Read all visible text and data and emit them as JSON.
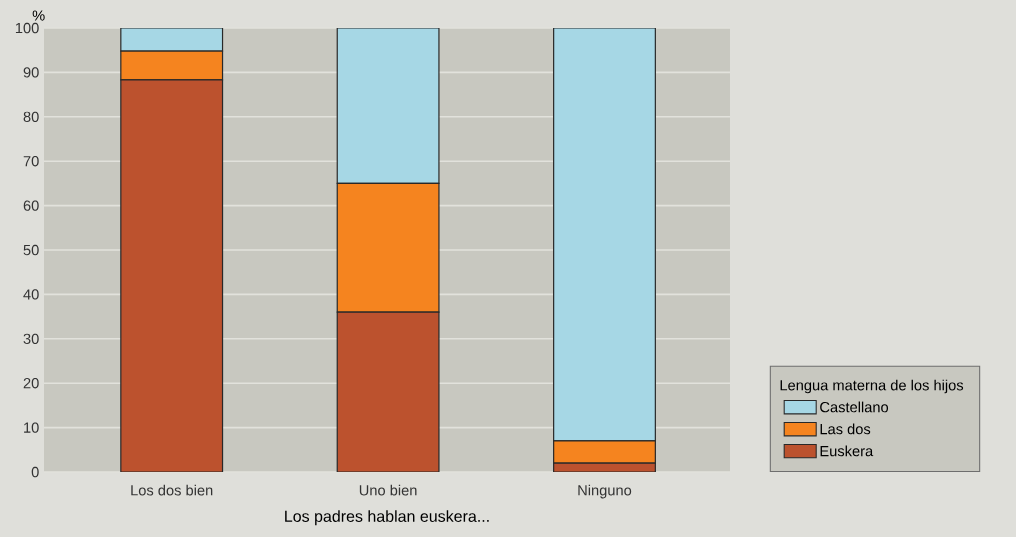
{
  "chart_data": {
    "type": "bar",
    "stacked": true,
    "categories": [
      "Los dos bien",
      "Uno bien",
      "Ninguno"
    ],
    "series": [
      {
        "name": "Euskera",
        "color": "#bc522e",
        "values": [
          88.3,
          36,
          2
        ]
      },
      {
        "name": "Las dos",
        "color": "#f5841f",
        "values": [
          6.5,
          29,
          5
        ]
      },
      {
        "name": "Castellano",
        "color": "#a6d7e5",
        "values": [
          5.2,
          35,
          93
        ]
      }
    ],
    "ylabel": "%",
    "xlabel": "Los padres hablan euskera...",
    "legend_title": "Lengua materna de los hijos",
    "ylim": [
      0,
      100
    ],
    "yticks": [
      0,
      10,
      20,
      30,
      40,
      50,
      60,
      70,
      80,
      90,
      100
    ],
    "grid": "y",
    "legend": "right"
  }
}
